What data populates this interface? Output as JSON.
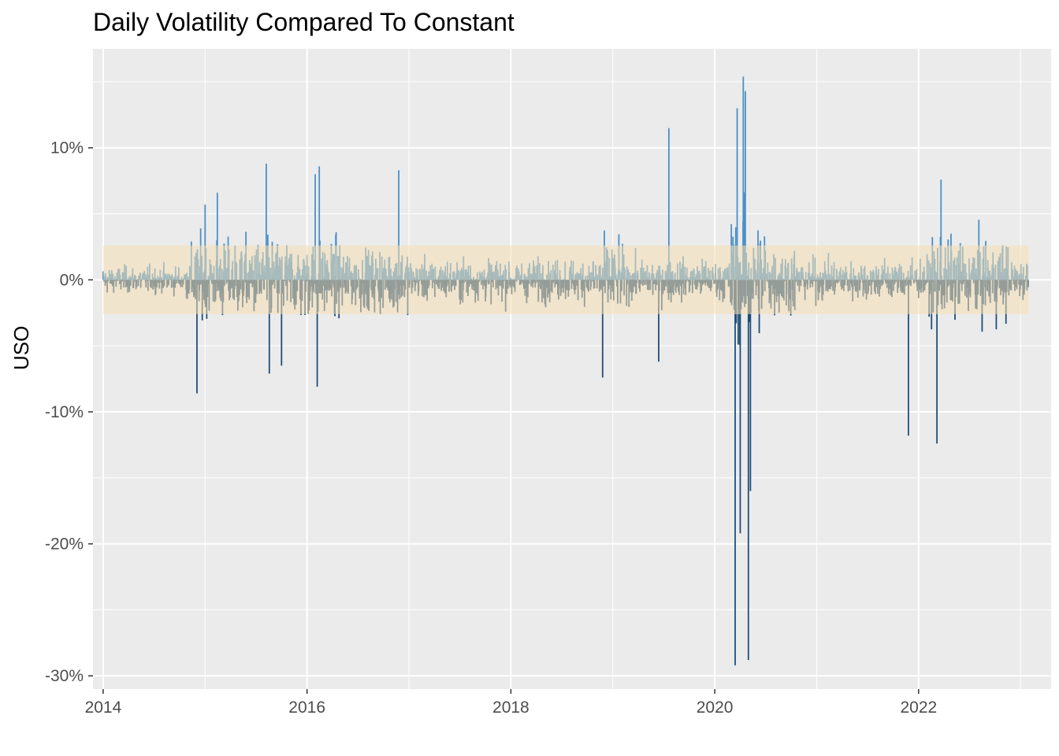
{
  "chart_data": {
    "type": "bar",
    "title": "Daily Volatility Compared To Constant",
    "xlabel": "",
    "ylabel": "USO",
    "xlim": [
      2013.9,
      2023.3
    ],
    "ylim": [
      -0.31,
      0.175
    ],
    "x_ticks": [
      {
        "value": 2014,
        "label": "2014"
      },
      {
        "value": 2016,
        "label": "2016"
      },
      {
        "value": 2018,
        "label": "2018"
      },
      {
        "value": 2020,
        "label": "2020"
      },
      {
        "value": 2022,
        "label": "2022"
      }
    ],
    "y_ticks": [
      {
        "value": 0.1,
        "label": "10%"
      },
      {
        "value": 0.0,
        "label": "0%"
      },
      {
        "value": -0.1,
        "label": "-10%"
      },
      {
        "value": -0.2,
        "label": "-20%"
      },
      {
        "value": -0.3,
        "label": "-30%"
      }
    ],
    "constant_band": {
      "lower": -0.026,
      "upper": 0.026,
      "x_start": 2014.0,
      "x_end": 2023.08,
      "color": "#f5deb3"
    },
    "series": [
      {
        "color_positive": "#4a90c8",
        "color_negative": "#1f4e79",
        "x_start": 2014.0,
        "x_end": 2023.08,
        "notable_values": [
          {
            "x": 2014.92,
            "y": -0.086
          },
          {
            "x": 2015.0,
            "y": 0.057
          },
          {
            "x": 2015.12,
            "y": 0.066
          },
          {
            "x": 2015.6,
            "y": 0.088
          },
          {
            "x": 2015.63,
            "y": -0.071
          },
          {
            "x": 2015.75,
            "y": -0.065
          },
          {
            "x": 2016.08,
            "y": 0.08
          },
          {
            "x": 2016.12,
            "y": 0.086
          },
          {
            "x": 2016.1,
            "y": -0.081
          },
          {
            "x": 2016.9,
            "y": 0.083
          },
          {
            "x": 2018.9,
            "y": -0.074
          },
          {
            "x": 2019.55,
            "y": 0.115
          },
          {
            "x": 2019.45,
            "y": -0.062
          },
          {
            "x": 2020.2,
            "y": -0.292
          },
          {
            "x": 2020.22,
            "y": 0.13
          },
          {
            "x": 2020.25,
            "y": -0.192
          },
          {
            "x": 2020.28,
            "y": 0.154
          },
          {
            "x": 2020.3,
            "y": 0.143
          },
          {
            "x": 2020.33,
            "y": -0.288
          },
          {
            "x": 2020.35,
            "y": -0.16
          },
          {
            "x": 2021.9,
            "y": -0.118
          },
          {
            "x": 2022.18,
            "y": -0.124
          },
          {
            "x": 2022.22,
            "y": 0.076
          }
        ]
      }
    ]
  }
}
